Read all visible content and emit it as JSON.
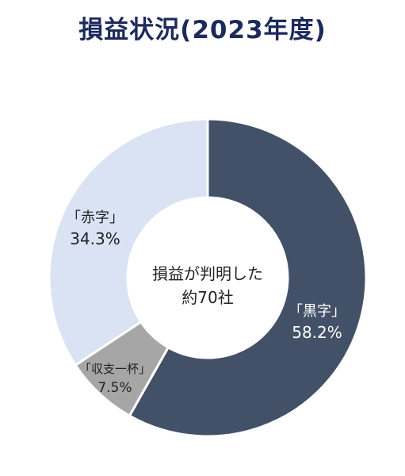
{
  "title": "損益状況(2023年度)",
  "center_label": {
    "line1": "損益が判明した",
    "line2": "約70社"
  },
  "chart_data": {
    "type": "pie",
    "variant": "donut",
    "title": "損益状況(2023年度)",
    "categories": [
      "「黒字」",
      "「収支一杯」",
      "「赤字」"
    ],
    "values": [
      58.2,
      7.5,
      34.3
    ],
    "value_labels": [
      "58.2%",
      "7.5%",
      "34.3%"
    ],
    "colors": [
      "#435168",
      "#a6a6a6",
      "#dae3f3"
    ],
    "label_colors": [
      "#ffffff",
      "#222222",
      "#222222"
    ],
    "start_angle_deg": 0,
    "direction": "clockwise",
    "legend": "none"
  }
}
